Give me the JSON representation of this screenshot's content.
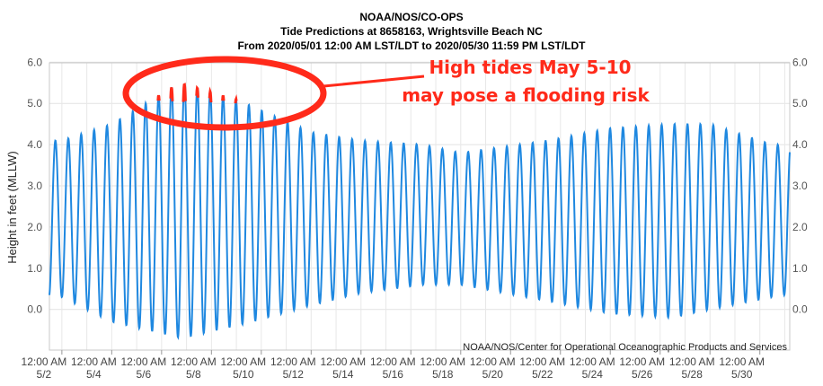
{
  "chart_data": {
    "type": "line",
    "title": "NOAA/NOS/CO-OPS",
    "subtitle_lines": [
      "Tide Predictions at 8658163, Wrightsville Beach NC",
      "From 2020/05/01 12:00 AM LST/LDT to 2020/05/30 11:59 PM LST/LDT"
    ],
    "ylabel": "Height in feet (MLLW)",
    "ylim": [
      -0.9,
      6.0
    ],
    "yticks": [
      "6.0",
      "5.0",
      "4.0",
      "3.0",
      "2.0",
      "1.0",
      "0.0"
    ],
    "ytick_values": [
      6,
      5,
      4,
      3,
      2,
      1,
      0
    ],
    "x_day_range": [
      1.5,
      31.2
    ],
    "xtick_days": [
      2,
      4,
      6,
      8,
      10,
      12,
      14,
      16,
      18,
      20,
      22,
      24,
      26,
      28,
      30
    ],
    "xtick_time_label": "12:00 AM",
    "xtick_date_labels": [
      "5/2",
      "5/4",
      "5/6",
      "5/8",
      "5/10",
      "5/12",
      "5/14",
      "5/16",
      "5/18",
      "5/20",
      "5/22",
      "5/24",
      "5/26",
      "5/28",
      "5/30"
    ],
    "grid": true,
    "series_color": "#1f88e0",
    "highlight_color": "#ff2a1a",
    "highlight_threshold": 5.0,
    "highlight_day_range": [
      5.0,
      10.5
    ],
    "tidal_cycle_days": 0.5175,
    "tide_model": {
      "high_days": [
        2.0,
        4.0,
        6.7,
        9.0,
        12.0,
        14.0,
        16.5,
        18.0,
        21.5,
        24.0,
        26.5,
        28.0,
        30.5,
        31.5
      ],
      "high_values": [
        4.1,
        4.5,
        5.5,
        5.1,
        4.3,
        4.1,
        4.0,
        3.8,
        4.1,
        4.4,
        4.5,
        4.5,
        4.0,
        4.0
      ],
      "low_days": [
        2.0,
        4.0,
        6.8,
        9.0,
        12.0,
        14.0,
        16.5,
        18.0,
        21.5,
        24.0,
        26.5,
        28.0,
        30.5,
        31.5
      ],
      "low_values": [
        0.3,
        -0.3,
        -0.7,
        -0.4,
        0.1,
        0.4,
        0.6,
        0.6,
        0.2,
        -0.1,
        -0.2,
        0.0,
        0.3,
        0.4
      ]
    }
  },
  "annotation": {
    "line1": "High tides May 5-10",
    "line2": "may pose a flooding risk",
    "color": "#ff2a1a"
  },
  "credit": "NOAA/NOS/Center for Operational Oceanographic Products and Services"
}
